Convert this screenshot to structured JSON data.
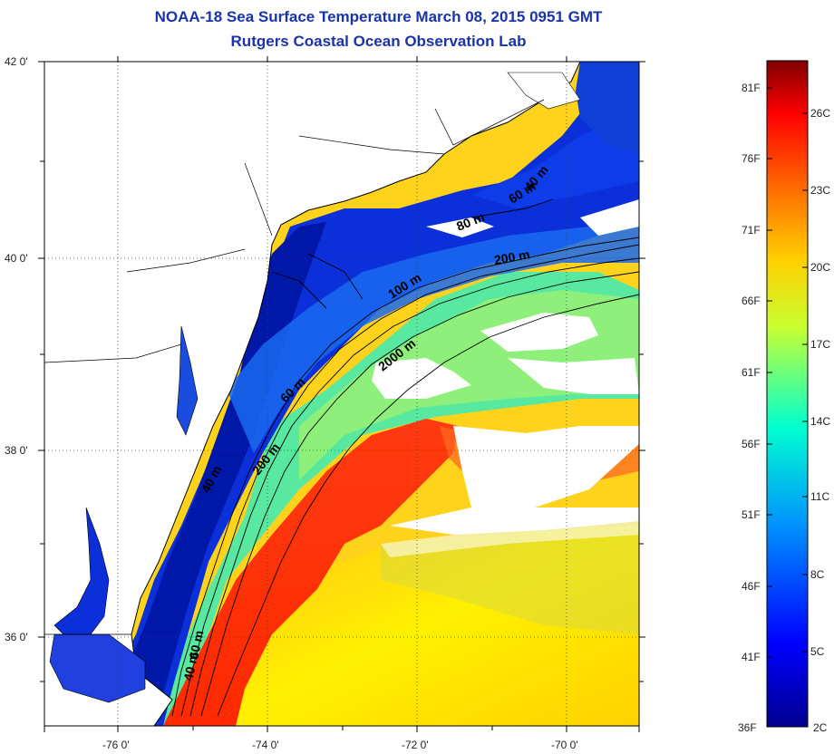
{
  "title": {
    "line1": "NOAA-18 Sea Surface Temperature March 08, 2015 0951 GMT",
    "line2": "Rutgers Coastal Ocean Observation Lab"
  },
  "axes": {
    "lat_labels": [
      "42 0'",
      "40 0'",
      "38 0'",
      "36 0'"
    ],
    "lon_labels": [
      "-76 0'",
      "-74 0'",
      "-72 0'",
      "-70 0'"
    ]
  },
  "contour_labels": [
    "40 m",
    "60 m",
    "80 m",
    "200 m",
    "100 m",
    "2000 m",
    "60 m",
    "200 m",
    "40 m",
    "40 m",
    "60 m"
  ],
  "colorbar": {
    "fahrenheit": [
      "81F",
      "76F",
      "71F",
      "66F",
      "61F",
      "56F",
      "51F",
      "46F",
      "41F",
      "36F"
    ],
    "celsius": [
      "26C",
      "23C",
      "20C",
      "17C",
      "14C",
      "11C",
      "8C",
      "5C",
      "2C"
    ],
    "colors": [
      "#00008f",
      "#0000ff",
      "#0080ff",
      "#00ffff",
      "#80ff80",
      "#ffff00",
      "#ff8000",
      "#ff0000",
      "#800000"
    ]
  }
}
